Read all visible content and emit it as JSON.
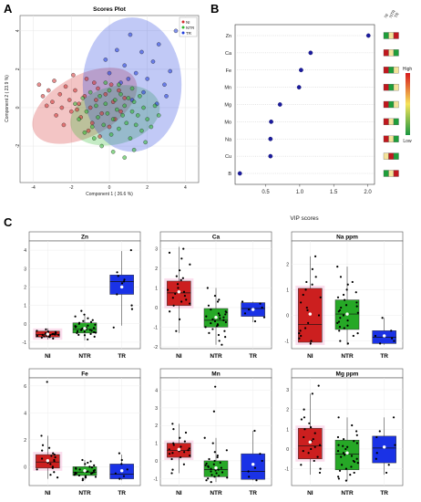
{
  "panels": {
    "a": "A",
    "b": "B",
    "c": "C"
  },
  "colors": {
    "NI": "#d32f2f",
    "NTR": "#2eb82e",
    "TR": "#1f3dde"
  },
  "chart_data": [
    {
      "type": "scatter",
      "title": "Scores Plot",
      "xlabel": "Component 1 ( 26.6 %)",
      "ylabel": "Component 2 ( 23.9 %)",
      "xlim": [
        -4.7,
        4.7
      ],
      "ylim": [
        -3.9,
        4.8
      ],
      "xticks": [
        -4,
        -2,
        0,
        2,
        4
      ],
      "yticks": [
        -2,
        0,
        2,
        4
      ],
      "legend": {
        "position": "top-right",
        "entries": [
          "NI",
          "NTR",
          "TR"
        ]
      },
      "ellipses": [
        {
          "group": "NI",
          "cx": -1.3,
          "cy": 0.1,
          "rx": 3.0,
          "ry": 1.6,
          "angle": -28
        },
        {
          "group": "NTR",
          "cx": 0.3,
          "cy": -0.4,
          "rx": 2.4,
          "ry": 1.5,
          "angle": -15
        },
        {
          "group": "TR",
          "cx": 1.2,
          "cy": 1.2,
          "rx": 2.6,
          "ry": 3.5,
          "angle": 0
        }
      ],
      "points": {
        "NI": [
          [
            -3.7,
            1.2
          ],
          [
            -3.5,
            0.6
          ],
          [
            -3.2,
            0.9
          ],
          [
            -3.0,
            0.3
          ],
          [
            -2.9,
            1.4
          ],
          [
            -2.6,
            0.7
          ],
          [
            -2.5,
            0.0
          ],
          [
            -2.3,
            1.1
          ],
          [
            -2.1,
            0.4
          ],
          [
            -2.0,
            -0.2
          ],
          [
            -1.8,
            0.9
          ],
          [
            -1.6,
            0.2
          ],
          [
            -1.5,
            -0.5
          ],
          [
            -1.3,
            0.6
          ],
          [
            -1.2,
            1.5
          ],
          [
            -1.0,
            0.0
          ],
          [
            -0.9,
            -0.8
          ],
          [
            -0.7,
            0.4
          ],
          [
            -0.6,
            1.0
          ],
          [
            -0.4,
            -0.3
          ],
          [
            -0.2,
            0.7
          ],
          [
            0.0,
            -1.0
          ],
          [
            0.2,
            0.3
          ],
          [
            0.3,
            -0.6
          ],
          [
            0.5,
            0.9
          ],
          [
            -2.8,
            -0.4
          ],
          [
            -1.9,
            1.7
          ],
          [
            -1.1,
            -1.2
          ],
          [
            -0.5,
            -1.5
          ],
          [
            0.6,
            -0.2
          ],
          [
            -3.3,
            0.1
          ],
          [
            -2.4,
            -0.9
          ],
          [
            -1.7,
            -0.1
          ],
          [
            -0.8,
            1.3
          ],
          [
            0.1,
            1.2
          ],
          [
            0.8,
            0.5
          ]
        ],
        "NTR": [
          [
            -1.8,
            0.2
          ],
          [
            -1.6,
            -0.6
          ],
          [
            -1.4,
            0.5
          ],
          [
            -1.2,
            -0.2
          ],
          [
            -1.0,
            0.8
          ],
          [
            -0.9,
            -1.0
          ],
          [
            -0.7,
            0.1
          ],
          [
            -0.6,
            -0.5
          ],
          [
            -0.5,
            0.6
          ],
          [
            -0.3,
            -0.9
          ],
          [
            -0.2,
            0.2
          ],
          [
            -0.1,
            -0.3
          ],
          [
            0.0,
            0.9
          ],
          [
            0.1,
            -1.4
          ],
          [
            0.2,
            -0.6
          ],
          [
            0.3,
            0.4
          ],
          [
            0.4,
            -0.1
          ],
          [
            0.5,
            -1.1
          ],
          [
            0.6,
            0.7
          ],
          [
            0.7,
            -0.4
          ],
          [
            0.8,
            0.1
          ],
          [
            0.9,
            -0.8
          ],
          [
            1.0,
            0.5
          ],
          [
            1.1,
            -1.6
          ],
          [
            1.2,
            -0.2
          ],
          [
            1.3,
            0.3
          ],
          [
            1.4,
            -0.9
          ],
          [
            1.5,
            -0.4
          ],
          [
            1.6,
            0.6
          ],
          [
            1.7,
            -1.2
          ],
          [
            1.8,
            0.0
          ],
          [
            2.0,
            -0.6
          ],
          [
            2.2,
            -1.0
          ],
          [
            2.4,
            0.1
          ],
          [
            -0.8,
            -1.6
          ],
          [
            -0.4,
            -2.0
          ],
          [
            0.2,
            -2.3
          ],
          [
            0.8,
            -2.6
          ],
          [
            1.3,
            -2.2
          ],
          [
            1.9,
            -1.8
          ],
          [
            -1.3,
            -1.3
          ],
          [
            0.5,
            1.2
          ],
          [
            1.2,
            1.0
          ],
          [
            -0.2,
            1.3
          ],
          [
            2.6,
            -0.4
          ]
        ],
        "TR": [
          [
            -0.2,
            2.5
          ],
          [
            0.4,
            3.0
          ],
          [
            0.8,
            2.2
          ],
          [
            1.1,
            3.8
          ],
          [
            1.4,
            1.8
          ],
          [
            1.7,
            2.9
          ],
          [
            2.0,
            1.5
          ],
          [
            2.3,
            2.4
          ],
          [
            2.6,
            3.3
          ],
          [
            2.9,
            1.2
          ],
          [
            3.2,
            1.9
          ],
          [
            3.5,
            4.0
          ],
          [
            3.0,
            0.6
          ],
          [
            2.5,
            0.2
          ],
          [
            1.8,
            0.8
          ],
          [
            1.2,
            0.4
          ],
          [
            0.6,
            1.3
          ],
          [
            0.0,
            1.8
          ],
          [
            1.0,
            1.5
          ]
        ]
      }
    },
    {
      "type": "scatter",
      "title": "",
      "xlabel": "VIP scores",
      "xlim": [
        0.05,
        2.1
      ],
      "xticks": [
        0.5,
        1.0,
        1.5,
        2.0
      ],
      "categories": [
        "Zn",
        "Ca",
        "Fe",
        "Mn",
        "Mg",
        "Mo",
        "Na",
        "Cu",
        "B"
      ],
      "values": [
        2.01,
        1.16,
        1.02,
        0.99,
        0.71,
        0.58,
        0.57,
        0.57,
        0.12
      ],
      "heatmap": {
        "columns": [
          "NI",
          "NTR",
          "TR"
        ],
        "rows": [
          [
            "#1e9e3a",
            "#f3e39a",
            "#c0181e"
          ],
          [
            "#c0181e",
            "#f3e39a",
            "#1e9e3a"
          ],
          [
            "#c0181e",
            "#1e9e3a",
            "#f3e39a"
          ],
          [
            "#c0181e",
            "#1e9e3a",
            "#f3e39a"
          ],
          [
            "#c0181e",
            "#1e9e3a",
            "#f3e39a"
          ],
          [
            "#c0181e",
            "#f3e39a",
            "#1e9e3a"
          ],
          [
            "#c0181e",
            "#f3e39a",
            "#1e9e3a"
          ],
          [
            "#f3e39a",
            "#c0181e",
            "#1e9e3a"
          ],
          [
            "#1e9e3a",
            "#f3e39a",
            "#c0181e"
          ]
        ],
        "scale_high": "High",
        "scale_low": "Low"
      }
    },
    {
      "type": "box",
      "title": "Zn",
      "categories": [
        "NI",
        "NTR",
        "TR"
      ],
      "ylim": [
        -1.35,
        4.5
      ],
      "yticks": [
        -1,
        0,
        1,
        2,
        3,
        4
      ],
      "boxes": [
        {
          "q1": -0.72,
          "median": -0.58,
          "q3": -0.4,
          "whisker_low": -0.85,
          "whisker_high": -0.25,
          "mean": -0.56
        },
        {
          "q1": -0.5,
          "median": -0.3,
          "q3": 0.05,
          "whisker_low": -0.9,
          "whisker_high": 0.45,
          "mean": -0.25
        },
        {
          "q1": 1.6,
          "median": 2.3,
          "q3": 2.65,
          "whisker_low": -0.1,
          "whisker_high": 3.95,
          "mean": 2.0
        }
      ],
      "points": [
        [
          -0.8,
          -0.7,
          -0.65,
          -0.6,
          -0.58,
          -0.55,
          -0.5,
          -0.45,
          -0.42,
          -0.38,
          -0.72,
          -0.62,
          -0.52,
          -0.48,
          -0.68,
          -0.3,
          -0.75,
          -0.6,
          -0.56,
          -0.5,
          -0.44,
          -0.66
        ],
        [
          -0.85,
          -0.7,
          -0.6,
          -0.55,
          -0.5,
          -0.45,
          -0.4,
          -0.35,
          -0.3,
          -0.28,
          -0.25,
          -0.2,
          -0.15,
          -0.1,
          -0.05,
          0.0,
          0.05,
          0.1,
          0.2,
          0.3,
          0.4,
          -0.62,
          -0.38,
          -0.33,
          -0.18,
          0.15,
          -0.48,
          -0.22,
          0.5,
          0.7,
          -0.42,
          -0.12
        ],
        [
          4.0,
          2.8,
          2.6,
          2.4,
          2.3,
          2.2,
          1.6,
          1.0,
          0.8,
          -0.2
        ]
      ]
    },
    {
      "type": "box",
      "title": "Ca",
      "categories": [
        "NI",
        "NTR",
        "TR"
      ],
      "ylim": [
        -2.1,
        3.4
      ],
      "yticks": [
        -2,
        -1,
        0,
        1,
        2,
        3
      ],
      "boxes": [
        {
          "q1": 0.1,
          "median": 0.75,
          "q3": 1.35,
          "whisker_low": -1.3,
          "whisker_high": 3.1,
          "mean": 0.8
        },
        {
          "q1": -1.0,
          "median": -0.65,
          "q3": -0.05,
          "whisker_low": -1.9,
          "whisker_high": 1.0,
          "mean": -0.5
        },
        {
          "q1": -0.45,
          "median": -0.05,
          "q3": 0.25,
          "whisker_low": -0.75,
          "whisker_high": 0.3,
          "mean": -0.1
        }
      ],
      "points": [
        [
          3.0,
          2.8,
          2.2,
          1.9,
          1.6,
          1.4,
          1.2,
          1.0,
          0.9,
          0.8,
          0.7,
          0.5,
          0.4,
          0.2,
          0.1,
          -0.2,
          -0.6,
          -1.2,
          1.5,
          0.6,
          2.5,
          0.3
        ],
        [
          1.0,
          0.6,
          0.3,
          0.1,
          -0.1,
          -0.2,
          -0.3,
          -0.4,
          -0.5,
          -0.6,
          -0.65,
          -0.7,
          -0.8,
          -0.9,
          -1.0,
          -1.1,
          -1.2,
          -1.3,
          -1.5,
          -1.7,
          -1.9,
          -0.45,
          -0.55,
          -0.75,
          -0.85,
          -0.95,
          0.4,
          -1.4,
          -0.25,
          -0.35
        ],
        [
          0.3,
          0.2,
          0.0,
          -0.1,
          -0.3,
          -0.5,
          -0.7
        ]
      ]
    },
    {
      "type": "box",
      "title": "Na ppm",
      "categories": [
        "NI",
        "NTR",
        "TR"
      ],
      "ylim": [
        -1.3,
        2.9
      ],
      "yticks": [
        -1,
        0,
        1,
        2
      ],
      "boxes": [
        {
          "q1": -1.05,
          "median": -0.35,
          "q3": 1.05,
          "whisker_low": -1.15,
          "whisker_high": 2.3,
          "mean": 0.05
        },
        {
          "q1": -0.55,
          "median": 0.05,
          "q3": 0.6,
          "whisker_low": -1.15,
          "whisker_high": 1.9,
          "mean": 0.05
        },
        {
          "q1": -1.1,
          "median": -0.85,
          "q3": -0.6,
          "whisker_low": -1.15,
          "whisker_high": -0.1,
          "mean": -0.8
        }
      ],
      "points": [
        [
          2.3,
          1.8,
          1.5,
          1.2,
          1.0,
          0.8,
          0.5,
          0.2,
          0.0,
          -0.3,
          -0.5,
          -0.7,
          -0.9,
          -1.0,
          -1.1,
          0.3,
          1.3,
          -0.6,
          -0.8,
          0.7
        ],
        [
          1.9,
          1.5,
          1.2,
          1.0,
          0.8,
          0.7,
          0.6,
          0.5,
          0.4,
          0.3,
          0.2,
          0.1,
          0.0,
          -0.1,
          -0.2,
          -0.3,
          -0.4,
          -0.5,
          -0.6,
          -0.8,
          -1.0,
          -1.1,
          0.9,
          0.35,
          -0.25,
          -0.7,
          1.3,
          0.15,
          -0.45
        ],
        [
          -0.1,
          -0.6,
          -0.8,
          -0.9,
          -1.0,
          -1.1
        ]
      ]
    },
    {
      "type": "box",
      "title": "Fe",
      "categories": [
        "NI",
        "NTR",
        "TR"
      ],
      "ylim": [
        -1.4,
        6.6
      ],
      "yticks": [
        0,
        2,
        4,
        6
      ],
      "boxes": [
        {
          "q1": -0.1,
          "median": 0.35,
          "q3": 0.9,
          "whisker_low": -0.9,
          "whisker_high": 2.3,
          "mean": 0.45
        },
        {
          "q1": -0.65,
          "median": -0.4,
          "q3": 0.0,
          "whisker_low": -1.0,
          "whisker_high": 0.5,
          "mean": -0.3
        },
        {
          "q1": -0.9,
          "median": -0.55,
          "q3": 0.2,
          "whisker_low": -1.0,
          "whisker_high": 0.9,
          "mean": -0.3
        }
      ],
      "points": [
        [
          6.3,
          2.3,
          1.6,
          1.2,
          1.0,
          0.8,
          0.6,
          0.5,
          0.3,
          0.2,
          0.0,
          -0.2,
          -0.4,
          -0.6,
          -0.8,
          0.7,
          0.4,
          -0.1,
          0.9,
          1.4
        ],
        [
          0.5,
          0.3,
          0.2,
          0.1,
          0.0,
          -0.1,
          -0.2,
          -0.3,
          -0.35,
          -0.4,
          -0.45,
          -0.5,
          -0.55,
          -0.6,
          -0.65,
          -0.7,
          -0.8,
          -0.9,
          -1.0,
          -0.25,
          -0.15,
          -0.05,
          0.4,
          -0.75,
          -0.52,
          -0.48,
          -0.38
        ],
        [
          1.0,
          0.5,
          0.2,
          -0.2,
          -0.5,
          -0.7,
          -0.9
        ]
      ]
    },
    {
      "type": "box",
      "title": "Mn",
      "categories": [
        "NI",
        "NTR",
        "TR"
      ],
      "ylim": [
        -1.4,
        4.7
      ],
      "yticks": [
        -1,
        0,
        1,
        2,
        3,
        4
      ],
      "boxes": [
        {
          "q1": 0.2,
          "median": 0.6,
          "q3": 1.0,
          "whisker_low": -0.7,
          "whisker_high": 2.1,
          "mean": 0.65
        },
        {
          "q1": -0.9,
          "median": -0.5,
          "q3": 0.0,
          "whisker_low": -1.2,
          "whisker_high": 1.3,
          "mean": -0.4
        },
        {
          "q1": -1.05,
          "median": -0.6,
          "q3": 0.4,
          "whisker_low": -1.1,
          "whisker_high": 1.7,
          "mean": -0.2
        }
      ],
      "points": [
        [
          2.1,
          1.6,
          1.3,
          1.1,
          1.0,
          0.9,
          0.8,
          0.7,
          0.6,
          0.5,
          0.4,
          0.3,
          0.2,
          0.1,
          -0.2,
          -0.5,
          -0.7,
          1.8,
          0.65,
          0.55,
          0.45
        ],
        [
          4.2,
          2.8,
          1.3,
          1.0,
          0.6,
          0.3,
          0.1,
          0.0,
          -0.1,
          -0.2,
          -0.3,
          -0.4,
          -0.5,
          -0.6,
          -0.7,
          -0.8,
          -0.9,
          -1.0,
          -1.1,
          -1.2,
          -0.45,
          -0.55,
          -0.65,
          -0.35,
          -0.25,
          0.2,
          -0.85,
          -0.95,
          0.5,
          -0.15
        ],
        [
          1.7,
          0.4,
          0.0,
          -0.4,
          -0.6,
          -0.9,
          -1.1
        ]
      ]
    },
    {
      "type": "box",
      "title": "Mg ppm",
      "categories": [
        "NI",
        "NTR",
        "TR"
      ],
      "ylim": [
        -1.85,
        3.6
      ],
      "yticks": [
        -1,
        0,
        1,
        2,
        3
      ],
      "boxes": [
        {
          "q1": -0.5,
          "median": 0.15,
          "q3": 1.05,
          "whisker_low": -1.3,
          "whisker_high": 2.8,
          "mean": 0.35
        },
        {
          "q1": -1.05,
          "median": -0.25,
          "q3": 0.45,
          "whisker_low": -1.6,
          "whisker_high": 1.6,
          "mean": -0.2
        },
        {
          "q1": -0.7,
          "median": 0.05,
          "q3": 0.65,
          "whisker_low": -1.3,
          "whisker_high": 1.6,
          "mean": 0.1
        }
      ],
      "points": [
        [
          3.2,
          2.8,
          2.0,
          1.6,
          1.3,
          1.1,
          1.0,
          0.8,
          0.6,
          0.4,
          0.2,
          0.1,
          0.0,
          -0.2,
          -0.4,
          -0.6,
          -0.8,
          -1.0,
          -1.2,
          0.5,
          1.5,
          -0.1
        ],
        [
          1.6,
          1.2,
          0.9,
          0.7,
          0.5,
          0.4,
          0.3,
          0.2,
          0.1,
          0.0,
          -0.1,
          -0.2,
          -0.3,
          -0.4,
          -0.5,
          -0.6,
          -0.7,
          -0.8,
          -0.9,
          -1.0,
          -1.1,
          -1.2,
          -1.3,
          -1.4,
          -1.5,
          -1.6,
          0.6,
          -0.35,
          -0.65,
          0.15
        ],
        [
          1.6,
          0.9,
          0.6,
          0.2,
          -0.2,
          -0.5,
          -0.8,
          -1.2
        ]
      ]
    }
  ]
}
